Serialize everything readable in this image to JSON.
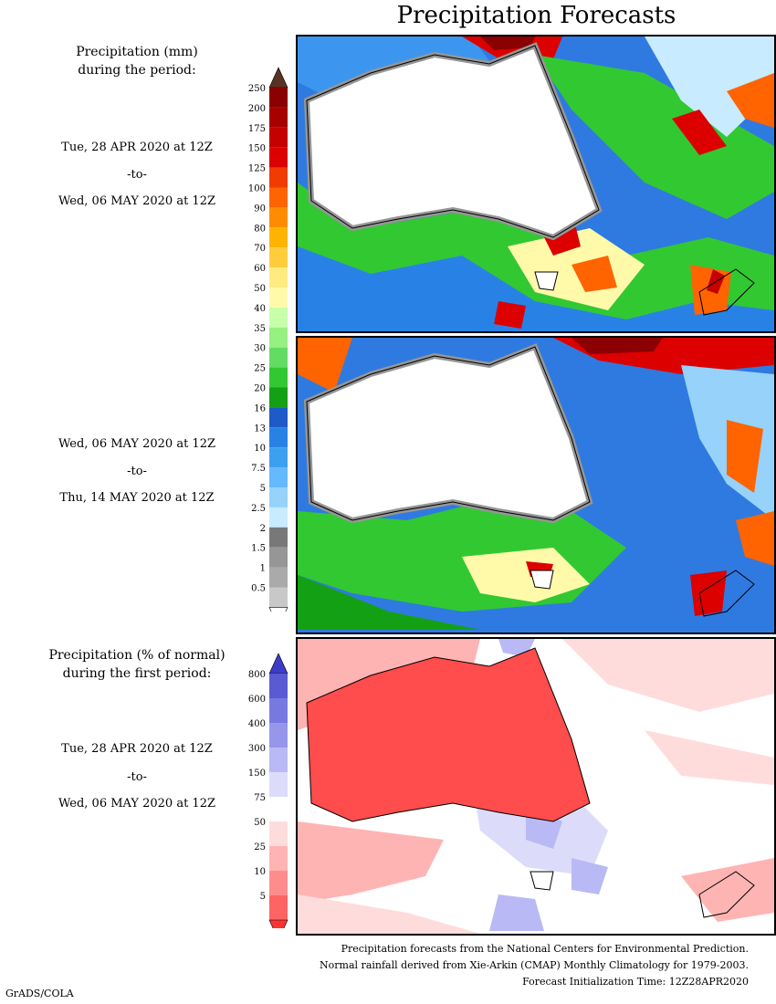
{
  "title": "Precipitation Forecasts",
  "section1": {
    "heading_line1": "Precipitation (mm)",
    "heading_line2": "during the period:"
  },
  "period1": {
    "start": "Tue, 28 APR 2020 at 12Z",
    "sep": "-to-",
    "end": "Wed, 06 MAY 2020 at 12Z"
  },
  "period2": {
    "start": "Wed, 06 MAY 2020 at 12Z",
    "sep": "-to-",
    "end": "Thu, 14 MAY 2020 at 12Z"
  },
  "section2": {
    "heading_line1": "Precipitation (% of normal)",
    "heading_line2": "during the first period:"
  },
  "period3": {
    "start": "Tue, 28 APR 2020 at 12Z",
    "sep": "-to-",
    "end": "Wed, 06 MAY 2020 at 12Z"
  },
  "precip_colorbar": {
    "labels": [
      "250",
      "200",
      "175",
      "150",
      "125",
      "100",
      "90",
      "80",
      "70",
      "60",
      "50",
      "40",
      "35",
      "30",
      "25",
      "20",
      "16",
      "13",
      "10",
      "7.5",
      "5",
      "2.5",
      "2",
      "1.5",
      "1",
      "0.5"
    ],
    "colors": [
      "#8b0000",
      "#a80000",
      "#c40000",
      "#dc0000",
      "#f03c00",
      "#ff6400",
      "#ff8c00",
      "#ffb400",
      "#ffcd3c",
      "#ffeb82",
      "#fffaaa",
      "#c8ffaa",
      "#96f082",
      "#64dc64",
      "#32c832",
      "#14a014",
      "#1e5ac8",
      "#2882e6",
      "#3ca0f0",
      "#64b9ff",
      "#96d2fa",
      "#c8ebff",
      "#787878",
      "#969696",
      "#aaaaaa",
      "#c8c8c8"
    ],
    "top_color": "#5a3223",
    "bottom_color": "#ffffff"
  },
  "pct_colorbar": {
    "labels": [
      "800",
      "600",
      "400",
      "300",
      "150",
      "75",
      "50",
      "25",
      "10",
      "5"
    ],
    "colors": [
      "#5a5ad2",
      "#7878e1",
      "#9696eb",
      "#b9b9f5",
      "#dcdcfa",
      "#ffffff",
      "#ffdcdc",
      "#ffb4b4",
      "#ff8c8c",
      "#ff6464"
    ],
    "top_color": "#3c3cc8",
    "bottom_color": "#ff3232"
  },
  "footer": {
    "line1": "Precipitation forecasts from the National Centers for Environmental Prediction.",
    "line2": "Normal rainfall derived from Xie-Arkin (CMAP) Monthly Climatology for 1979-2003.",
    "line3": "Forecast Initialization Time: 12Z28APR2020"
  },
  "credit": "GrADS/COLA"
}
